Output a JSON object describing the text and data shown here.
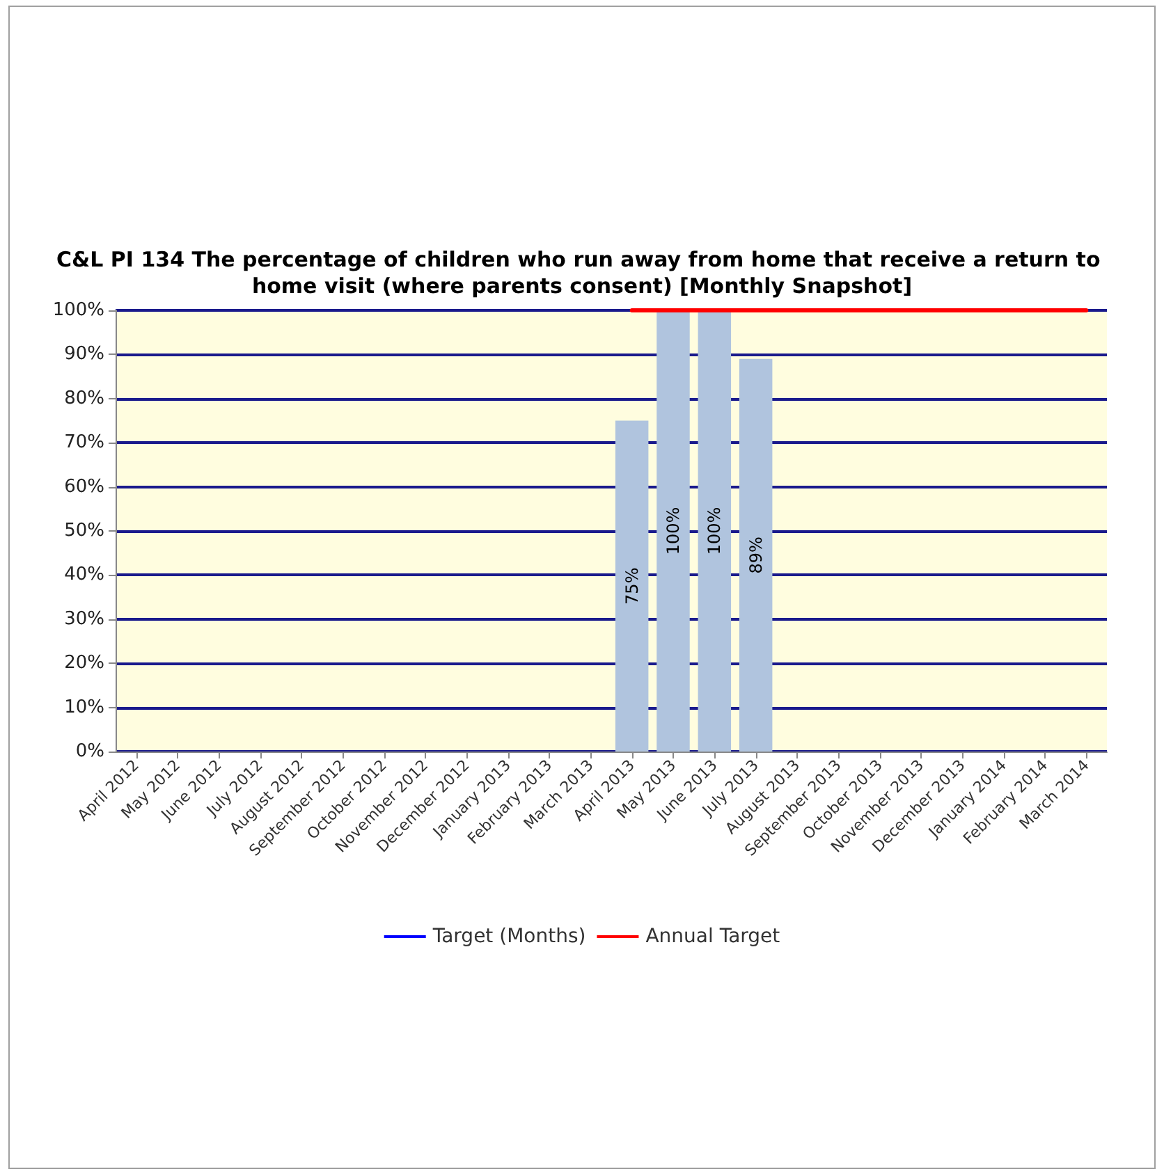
{
  "chart_data": {
    "type": "bar",
    "title": "C&L PI 134 The percentage of children who run away from home that receive a return to home visit (where parents consent) [Monthly Snapshot]",
    "categories": [
      "April 2012",
      "May 2012",
      "June 2012",
      "July 2012",
      "August 2012",
      "September 2012",
      "October 2012",
      "November 2012",
      "December 2012",
      "January 2013",
      "February 2013",
      "March 2013",
      "April 2013",
      "May 2013",
      "June 2013",
      "July 2013",
      "August 2013",
      "September 2013",
      "October 2013",
      "November 2013",
      "December 2013",
      "January 2014",
      "February 2014",
      "March 2014"
    ],
    "series": [
      {
        "color": "#b0c4de",
        "values": [
          null,
          null,
          null,
          null,
          null,
          null,
          null,
          null,
          null,
          null,
          null,
          null,
          75,
          100,
          100,
          89,
          null,
          null,
          null,
          null,
          null,
          null,
          null,
          null
        ],
        "value_labels": [
          null,
          null,
          null,
          null,
          null,
          null,
          null,
          null,
          null,
          null,
          null,
          null,
          "75%",
          "100%",
          "100%",
          "89%",
          null,
          null,
          null,
          null,
          null,
          null,
          null,
          null
        ]
      },
      {
        "type": "line",
        "name": "Target (Months)",
        "color": "#0000ff",
        "values": [
          null,
          null,
          null,
          null,
          null,
          null,
          null,
          null,
          null,
          null,
          null,
          null,
          null,
          null,
          null,
          null,
          null,
          null,
          null,
          null,
          null,
          null,
          null,
          null
        ]
      },
      {
        "type": "line",
        "name": "Annual Target",
        "color": "#ff0000",
        "values": [
          null,
          null,
          null,
          null,
          null,
          null,
          null,
          null,
          null,
          null,
          null,
          null,
          100,
          100,
          100,
          100,
          100,
          100,
          100,
          100,
          100,
          100,
          100,
          100
        ]
      }
    ],
    "ylim": [
      0,
      100
    ],
    "yticks": [
      {
        "value": 0,
        "label": "0%"
      },
      {
        "value": 10,
        "label": "10%"
      },
      {
        "value": 20,
        "label": "20%"
      },
      {
        "value": 30,
        "label": "30%"
      },
      {
        "value": 40,
        "label": "40%"
      },
      {
        "value": 50,
        "label": "50%"
      },
      {
        "value": 60,
        "label": "60%"
      },
      {
        "value": 70,
        "label": "70%"
      },
      {
        "value": 80,
        "label": "80%"
      },
      {
        "value": 90,
        "label": "90%"
      },
      {
        "value": 100,
        "label": "100%"
      }
    ],
    "grid": "y",
    "legend": "bottom",
    "marker": "none",
    "line_style": "solid"
  }
}
